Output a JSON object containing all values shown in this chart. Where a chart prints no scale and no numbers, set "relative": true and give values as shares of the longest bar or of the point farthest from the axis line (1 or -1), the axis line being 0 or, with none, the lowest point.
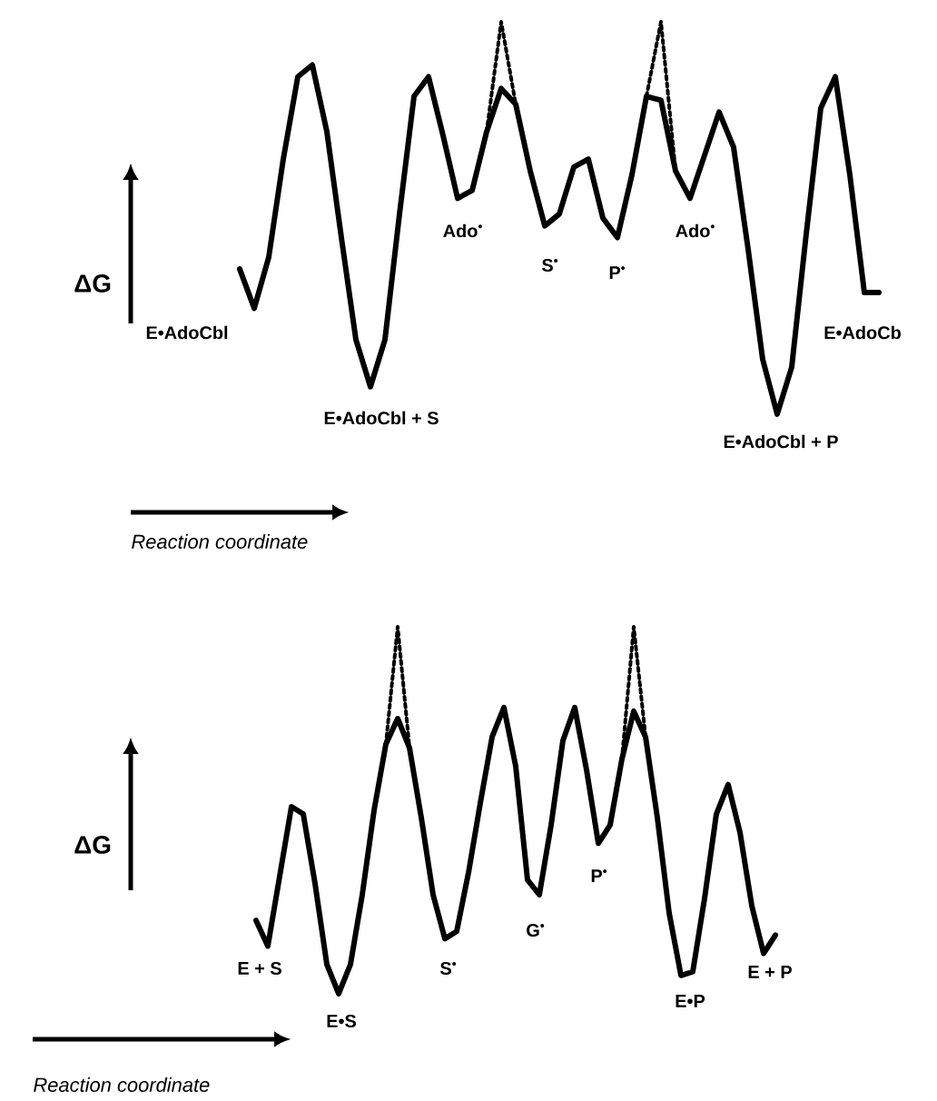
{
  "chart_data": [
    {
      "type": "line",
      "relative": true,
      "ylabel": "ΔG",
      "xlabel": "Reaction coordinate",
      "categories": [
        null,
        null,
        null,
        null,
        null,
        null,
        null,
        null,
        null,
        null,
        null,
        null,
        null,
        null,
        null,
        null,
        null,
        null,
        null,
        null,
        null,
        null,
        null,
        null,
        null,
        null,
        null,
        null,
        null,
        null,
        null,
        null,
        null,
        null,
        null,
        null,
        null,
        null,
        null,
        null,
        null,
        null,
        null,
        null,
        null
      ],
      "series": [
        {
          "color": "#000000",
          "line_style": "solid",
          "values": [
            0.37,
            0.27,
            0.4,
            0.65,
            0.86,
            0.89,
            0.72,
            0.45,
            0.19,
            0.07,
            0.19,
            0.51,
            0.81,
            0.86,
            0.71,
            0.55,
            0.57,
            0.72,
            0.83,
            0.79,
            0.62,
            0.48,
            0.51,
            0.63,
            0.65,
            0.5,
            0.45,
            0.61,
            0.81,
            0.8,
            0.62,
            0.55,
            0.66,
            0.77,
            0.68,
            0.42,
            0.14,
            0.0,
            0.12,
            0.46,
            0.78,
            0.86,
            0.61,
            0.31,
            0.31
          ]
        },
        {
          "color": "#000000",
          "line_style": "dotted",
          "values": [
            null,
            null,
            null,
            null,
            null,
            null,
            null,
            null,
            null,
            null,
            null,
            null,
            null,
            null,
            null,
            null,
            null,
            0.72,
            1.0,
            0.79,
            null,
            null,
            null,
            null,
            null,
            null,
            null,
            null,
            null,
            null,
            null,
            null,
            null,
            null,
            null,
            null,
            null,
            null,
            null,
            null,
            null,
            null,
            null,
            null,
            null
          ]
        },
        {
          "color": "#000000",
          "line_style": "dotted",
          "values": [
            null,
            null,
            null,
            null,
            null,
            null,
            null,
            null,
            null,
            null,
            null,
            null,
            null,
            null,
            null,
            null,
            null,
            null,
            null,
            null,
            null,
            null,
            null,
            null,
            null,
            null,
            null,
            null,
            0.81,
            1.0,
            0.62,
            null,
            null,
            null,
            null,
            null,
            null,
            null,
            null,
            null,
            null,
            null,
            null,
            null,
            null
          ]
        }
      ],
      "annotations": [
        "E•AdoCbl",
        "E•AdoCbl + S",
        "Ado$^{•}$",
        "S$^{•}$",
        "P$^{•}$",
        "Ado$^{•}$",
        "E•AdoCbl + P",
        "E•AdoCb"
      ]
    },
    {
      "type": "line",
      "relative": true,
      "ylabel": "ΔG",
      "xlabel": "Reaction coordinate",
      "categories": [
        null,
        null,
        null,
        null,
        null,
        null,
        null,
        null,
        null,
        null,
        null,
        null,
        null,
        null,
        null,
        null,
        null,
        null,
        null,
        null,
        null,
        null,
        null,
        null,
        null,
        null,
        null,
        null,
        null,
        null,
        null,
        null,
        null,
        null,
        null,
        null,
        null,
        null,
        null,
        null,
        null,
        null,
        null,
        null,
        null
      ],
      "series": [
        {
          "color": "#000000",
          "line_style": "solid",
          "values": [
            0.2,
            0.13,
            0.32,
            0.51,
            0.49,
            0.3,
            0.08,
            0.0,
            0.08,
            0.27,
            0.5,
            0.68,
            0.75,
            0.67,
            0.48,
            0.27,
            0.15,
            0.17,
            0.33,
            0.52,
            0.7,
            0.78,
            0.62,
            0.31,
            0.27,
            0.46,
            0.69,
            0.78,
            0.61,
            0.41,
            0.46,
            0.64,
            0.77,
            0.7,
            0.48,
            0.22,
            0.05,
            0.06,
            0.26,
            0.49,
            0.57,
            0.44,
            0.24,
            0.11,
            0.16
          ]
        },
        {
          "color": "#000000",
          "line_style": "dotted",
          "values": [
            null,
            null,
            null,
            null,
            null,
            null,
            null,
            null,
            null,
            null,
            null,
            0.68,
            1.0,
            0.67,
            null,
            null,
            null,
            null,
            null,
            null,
            null,
            null,
            null,
            null,
            null,
            null,
            null,
            null,
            null,
            null,
            null,
            null,
            null,
            null,
            null,
            null,
            null,
            null,
            null,
            null,
            null,
            null,
            null,
            null,
            null
          ]
        },
        {
          "color": "#000000",
          "line_style": "dotted",
          "values": [
            null,
            null,
            null,
            null,
            null,
            null,
            null,
            null,
            null,
            null,
            null,
            null,
            null,
            null,
            null,
            null,
            null,
            null,
            null,
            null,
            null,
            null,
            null,
            null,
            null,
            null,
            null,
            null,
            null,
            null,
            null,
            0.64,
            1.0,
            0.7,
            null,
            null,
            null,
            null,
            null,
            null,
            null,
            null,
            null,
            null,
            null
          ]
        }
      ],
      "annotations": [
        "E + S",
        "E•S",
        "S$^{•}$",
        "G$^{•}$",
        "P$^{•}$",
        "E•P",
        "E + P"
      ]
    }
  ]
}
